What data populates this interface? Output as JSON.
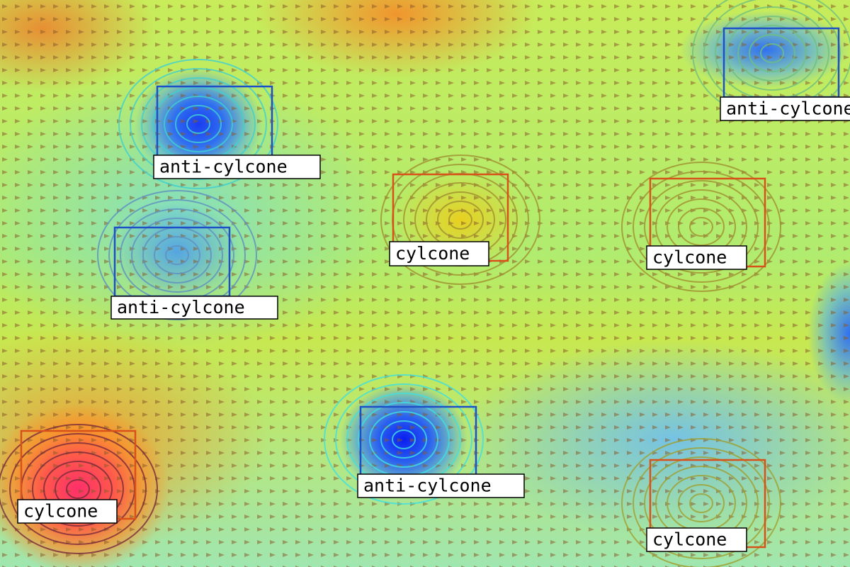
{
  "detections": [
    {
      "label": "anti-cylcone",
      "color": "#1c4fc8"
    },
    {
      "label": "anti-cylcone",
      "color": "#1c4fc8"
    },
    {
      "label": "cylcone",
      "color": "#d8501a"
    },
    {
      "label": "cylcone",
      "color": "#d8501a"
    },
    {
      "label": "anti-cylcone",
      "color": "#1c4fc8"
    },
    {
      "label": "anti-cylcone",
      "color": "#1c4fc8"
    },
    {
      "label": "cylcone",
      "color": "#d8501a"
    },
    {
      "label": "cylcone",
      "color": "#d8501a"
    }
  ]
}
